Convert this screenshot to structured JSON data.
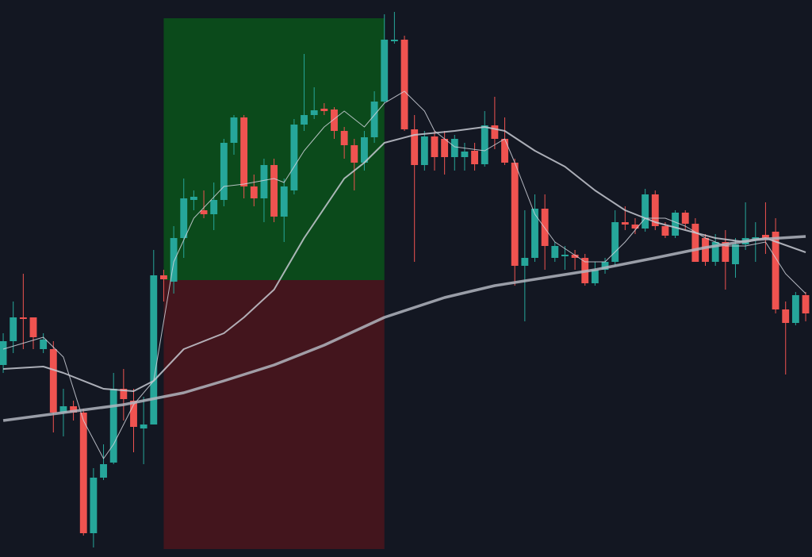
{
  "chart_data": {
    "type": "candlestick",
    "xlim": [
      -0.32,
      80.63
    ],
    "ylim": [
      0,
      702
    ],
    "up_color": "#26a69a",
    "down_color": "#ef5350",
    "open": [
      242,
      272,
      302,
      302,
      262,
      262,
      182,
      190,
      182,
      30,
      100,
      119,
      212,
      197,
      162,
      167,
      355,
      347,
      402,
      450,
      437,
      432,
      450,
      522,
      554,
      467,
      452,
      494,
      429,
      462,
      545,
      557,
      565,
      564,
      537,
      519,
      497,
      529,
      574,
      650,
      652,
      539,
      494,
      530,
      527,
      504,
      504,
      512,
      495,
      544,
      527,
      497,
      367,
      377,
      439,
      377,
      379,
      381,
      377,
      345,
      362,
      372,
      422,
      419,
      414,
      457,
      417,
      405,
      434,
      420,
      402,
      372,
      397,
      369,
      394,
      400,
      406,
      410,
      312,
      295,
      330
    ],
    "high": [
      282,
      322,
      357,
      302,
      282,
      272,
      212,
      197,
      187,
      112,
      142,
      232,
      237,
      212,
      202,
      387,
      362,
      417,
      477,
      462,
      462,
      472,
      527,
      557,
      557,
      482,
      502,
      502,
      477,
      552,
      634,
      592,
      572,
      567,
      542,
      527,
      537,
      587,
      684,
      687,
      657,
      557,
      537,
      537,
      537,
      532,
      522,
      522,
      562,
      580,
      554,
      502,
      437,
      457,
      457,
      397,
      392,
      387,
      382,
      372,
      377,
      437,
      442,
      427,
      464,
      462,
      422,
      437,
      437,
      427,
      407,
      407,
      412,
      402,
      447,
      422,
      447,
      427,
      322,
      334,
      334
    ],
    "low": [
      232,
      257,
      262,
      262,
      257,
      157,
      152,
      172,
      27,
      12,
      97,
      117,
      172,
      132,
      117,
      167,
      322,
      332,
      377,
      437,
      427,
      412,
      442,
      507,
      452,
      442,
      422,
      422,
      397,
      457,
      537,
      552,
      557,
      527,
      502,
      462,
      487,
      522,
      572,
      647,
      537,
      372,
      487,
      487,
      482,
      487,
      487,
      487,
      492,
      514,
      494,
      342,
      297,
      372,
      362,
      372,
      362,
      362,
      342,
      342,
      357,
      367,
      412,
      407,
      410,
      412,
      402,
      402,
      412,
      372,
      367,
      367,
      337,
      352,
      387,
      372,
      382,
      307,
      230,
      292,
      297
    ],
    "close": [
      272,
      302,
      300,
      277,
      274,
      182,
      190,
      182,
      30,
      100,
      117,
      212,
      199,
      164,
      167,
      355,
      350,
      402,
      452,
      454,
      432,
      450,
      522,
      554,
      467,
      452,
      494,
      429,
      467,
      545,
      557,
      563,
      562,
      537,
      519,
      497,
      529,
      574,
      652,
      652,
      539,
      494,
      530,
      504,
      504,
      527,
      511,
      495,
      544,
      527,
      497,
      367,
      377,
      439,
      392,
      392,
      381,
      377,
      345,
      362,
      372,
      422,
      419,
      414,
      457,
      417,
      405,
      434,
      420,
      372,
      372,
      397,
      372,
      394,
      402,
      403,
      402,
      312,
      295,
      330,
      307
    ],
    "lines": [
      {
        "color": "#d1d4dc",
        "width": 1,
        "x": [
          0,
          4,
          6,
          8,
          10,
          11,
          13,
          15,
          17,
          19,
          22,
          24,
          27,
          28,
          30,
          32,
          34,
          36,
          38,
          40,
          42,
          43,
          45,
          48,
          50,
          51,
          53,
          55,
          58,
          60,
          62,
          64,
          66,
          68,
          70,
          72,
          74,
          76,
          78,
          80
        ],
        "values": [
          262,
          277,
          252,
          172,
          124,
          142,
          192,
          222,
          372,
          427,
          467,
          470,
          477,
          472,
          512,
          542,
          562,
          542,
          572,
          587,
          562,
          537,
          517,
          512,
          527,
          497,
          432,
          397,
          372,
          372,
          397,
          427,
          427,
          417,
          402,
          392,
          392,
          397,
          357,
          332
        ]
      },
      {
        "color": "#c7c9d1",
        "width": 2,
        "x": [
          0,
          4,
          6,
          10,
          13,
          15,
          18,
          22,
          24,
          27,
          30,
          34,
          36,
          38,
          41,
          45,
          48,
          50,
          53,
          56,
          59,
          62,
          65,
          68,
          71,
          74,
          76,
          80
        ],
        "values": [
          237,
          240,
          232,
          212,
          209,
          222,
          262,
          282,
          302,
          337,
          402,
          477,
          497,
          522,
          532,
          537,
          542,
          537,
          512,
          492,
          462,
          437,
          422,
          412,
          402,
          397,
          402,
          384
        ]
      },
      {
        "color": "#b2b5be",
        "width": 3.5,
        "x": [
          0,
          6,
          12,
          18,
          22,
          27,
          32,
          38,
          44,
          49,
          54,
          59,
          65,
          70,
          75,
          80
        ],
        "values": [
          172,
          182,
          192,
          207,
          222,
          242,
          267,
          302,
          327,
          342,
          352,
          362,
          377,
          390,
          400,
          404
        ]
      }
    ],
    "position": {
      "start": 16,
      "end": 38,
      "target": 679,
      "entry": 349,
      "stop": 10,
      "profit_color": "#0b4a1b",
      "loss_color": "#43151d"
    }
  }
}
